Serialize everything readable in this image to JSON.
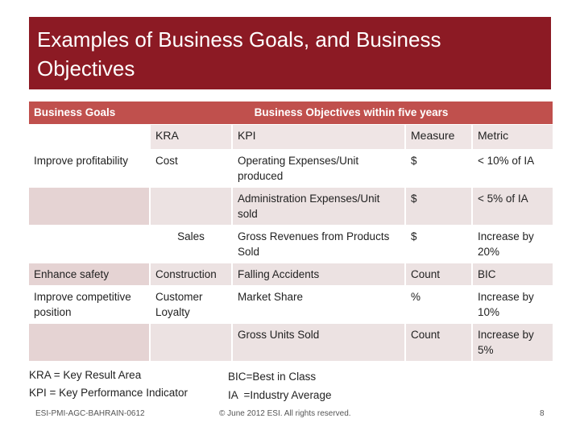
{
  "slide": {
    "title": "Examples of Business Goals, and Business Objectives"
  },
  "table": {
    "header": {
      "goals": "Business Goals",
      "objectives": "Business Objectives within five years"
    },
    "subheader": {
      "kra": "KRA",
      "kpi": "KPI",
      "measure": "Measure",
      "metric": "Metric"
    },
    "rows": [
      {
        "goal": "Improve profitability",
        "kra": "Cost",
        "kpi": "Operating Expenses/Unit produced",
        "measure": "$",
        "metric": "< 10% of IA"
      },
      {
        "goal": "",
        "kra": "",
        "kpi": "Administration Expenses/Unit sold",
        "measure": "$",
        "metric": "< 5% of IA"
      },
      {
        "goal": "",
        "kra": "Sales",
        "kpi": "Gross Revenues from Products Sold",
        "measure": "$",
        "metric": "Increase by 20%"
      },
      {
        "goal": "Enhance safety",
        "kra": "Construction",
        "kpi": "Falling Accidents",
        "measure": "Count",
        "metric": "BIC"
      },
      {
        "goal": "Improve competitive position",
        "kra": "Customer Loyalty",
        "kpi": "Market Share",
        "measure": "%",
        "metric": "Increase by 10%"
      },
      {
        "goal": "",
        "kra": "",
        "kpi": "Gross Units Sold",
        "measure": "Count",
        "metric": "Increase by 5%"
      }
    ]
  },
  "notes": {
    "kra_def": "KRA = Key Result Area",
    "kpi_def": "KPI = Key Performance Indicator",
    "bic_def": "BIC=Best in Class",
    "ia_def": "IA  =Industry Average"
  },
  "footer": {
    "left": "ESI-PMI-AGC-BAHRAIN-0612",
    "center": "© June 2012 ESI. All rights reserved.",
    "page": "8"
  },
  "colors": {
    "title_bg": "#8c1a24",
    "header_bg": "#c0504d",
    "band_light": "#ece2e2"
  }
}
